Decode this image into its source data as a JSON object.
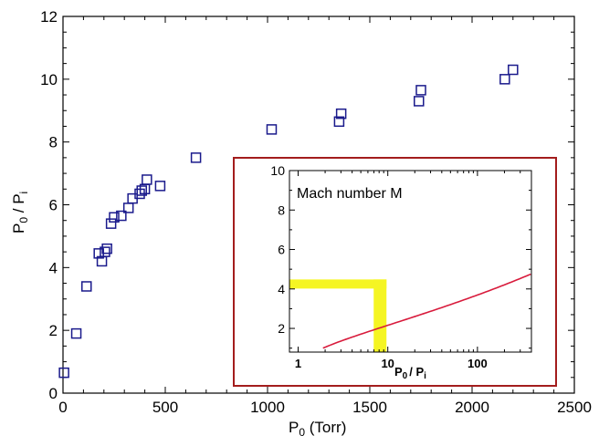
{
  "chart_data": [
    {
      "type": "scatter",
      "xlabel_main": "P",
      "xlabel_sub": "0",
      "xlabel_unit": " (Torr)",
      "ylabel_p0": "P",
      "ylabel_p0_sub": "0",
      "ylabel_sep": " / P",
      "ylabel_pi_sub": "i",
      "xlim": [
        0,
        2500
      ],
      "ylim": [
        0,
        12
      ],
      "xticks": [
        0,
        500,
        1000,
        1500,
        2000,
        2500
      ],
      "yticks": [
        0,
        2,
        4,
        6,
        8,
        10,
        12
      ],
      "marker": "open-square",
      "marker_color": "#1a1a8c",
      "series": [
        {
          "points": [
            [
              5,
              0.65
            ],
            [
              65,
              1.9
            ],
            [
              115,
              3.4
            ],
            [
              175,
              4.45
            ],
            [
              190,
              4.2
            ],
            [
              205,
              4.5
            ],
            [
              215,
              4.6
            ],
            [
              235,
              5.4
            ],
            [
              250,
              5.6
            ],
            [
              285,
              5.65
            ],
            [
              320,
              5.9
            ],
            [
              340,
              6.2
            ],
            [
              375,
              6.35
            ],
            [
              385,
              6.45
            ],
            [
              400,
              6.5
            ],
            [
              410,
              6.8
            ],
            [
              475,
              6.6
            ],
            [
              650,
              7.5
            ],
            [
              1020,
              8.4
            ],
            [
              1350,
              8.65
            ],
            [
              1360,
              8.9
            ],
            [
              1740,
              9.3
            ],
            [
              1750,
              9.65
            ],
            [
              2160,
              10.0
            ],
            [
              2200,
              10.3
            ]
          ]
        }
      ]
    },
    {
      "type": "line",
      "title": "Mach number M",
      "xlabel_main": "P",
      "xlabel_sub": "0",
      "xlabel_sep": "/ P",
      "xlabel_sub2": "i",
      "xscale": "log",
      "xlim": [
        0.8,
        400
      ],
      "ylim": [
        0.8,
        10
      ],
      "xtick_labels": [
        "1",
        "10",
        "100"
      ],
      "yticks": [
        2,
        4,
        6,
        8,
        10
      ],
      "line_color": "#d81b3c",
      "highlight_color": "#f5f523",
      "highlight": {
        "x": 8.2,
        "y": 4.25
      },
      "frame_color": "#a31d1d",
      "gamma": 1.4
    }
  ]
}
